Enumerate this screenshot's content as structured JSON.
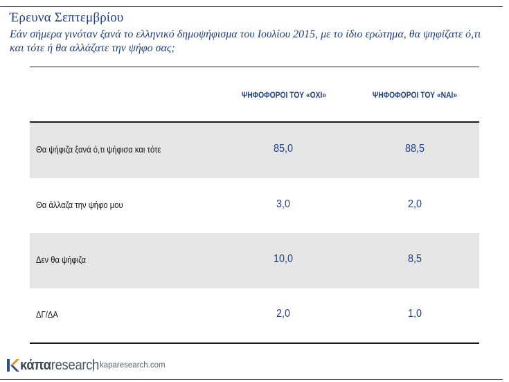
{
  "header": {
    "title": "Έρευνα Σεπτεμβρίου",
    "subtitle": "Εάν σήμερα γινόταν ξανά το ελληνικό δημοψήφισμα του Ιουλίου 2015, με το ίδιο ερώτημα, θα ψηφίζατε ό,τι και τότε ή θα αλλάζατε την ψήφο σας;"
  },
  "table": {
    "columns": [
      "ΨΗΦΟΦΟΡΟΙ ΤΟΥ «ΟΧΙ»",
      "ΨΗΦΟΦΟΡΟΙ ΤΟΥ «ΝΑΙ»"
    ],
    "rows": [
      {
        "label": "Θα ψήφιζα ξανά ό,τι ψήφισα και τότε",
        "values": [
          "85,0",
          "88,5"
        ]
      },
      {
        "label": "Θα άλλαζα την ψήφο μου",
        "values": [
          "3,0",
          "2,0"
        ]
      },
      {
        "label": "Δεν θα ψήφιζα",
        "values": [
          "10,0",
          "8,5"
        ]
      },
      {
        "label": "ΔΓ/ΔΑ",
        "values": [
          "2,0",
          "1,0"
        ]
      }
    ]
  },
  "footer": {
    "logo_text_bold": "κάπα",
    "logo_text_light": "research",
    "url": "kaparesearch.com"
  },
  "colors": {
    "accent": "#1f3e86",
    "row_shade": "#e5e5e6",
    "logo_orange": "#f08a1c",
    "logo_blue": "#2a4f8e"
  },
  "icons": {
    "logo": "kapa-research-logo-icon"
  }
}
